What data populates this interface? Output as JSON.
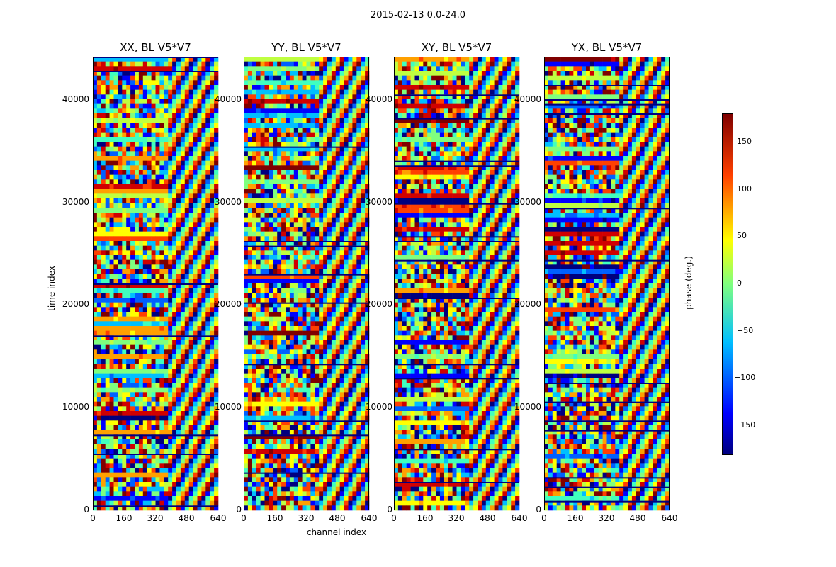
{
  "chart_data": {
    "type": "heatmap",
    "suptitle": "2015-02-13 0.0-24.0",
    "xlabel": "channel index",
    "ylabel": "time index",
    "xlim": [
      0,
      640
    ],
    "ylim": [
      0,
      44000
    ],
    "x_ticks": [
      "0",
      "160",
      "320",
      "480",
      "640"
    ],
    "y_ticks": [
      "0",
      "10000",
      "20000",
      "30000",
      "40000"
    ],
    "panels": [
      {
        "title": "XX, BL V5*V7"
      },
      {
        "title": "YY, BL V5*V7"
      },
      {
        "title": "XY, BL V5*V7"
      },
      {
        "title": "YX, BL V5*V7"
      }
    ],
    "colorbar": {
      "label": "phase (deg.)",
      "range": [
        -180,
        180
      ],
      "ticks": [
        "150",
        "100",
        "50",
        "0",
        "−50",
        "−100",
        "−150"
      ],
      "tick_values": [
        150,
        100,
        50,
        0,
        -50,
        -100,
        -150
      ]
    }
  }
}
